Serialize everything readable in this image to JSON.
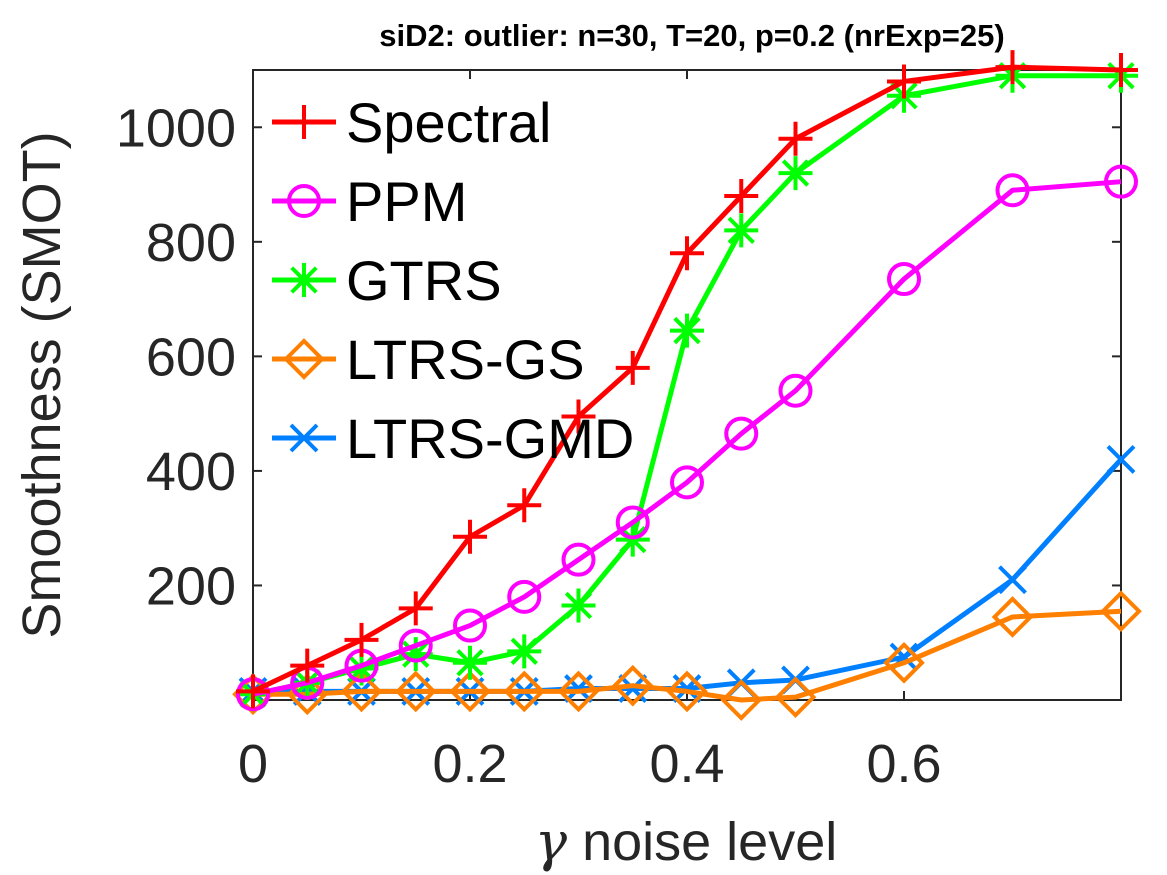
{
  "chart_data": {
    "type": "line",
    "title": "siD2: outlier: n=30, T=20, p=0.2 (nrExp=25)",
    "xlabel_symbol": "γ",
    "xlabel": "noise level",
    "ylabel": "Smoothness (SMOT)",
    "xlim": [
      0,
      0.8
    ],
    "ylim": [
      0,
      1100
    ],
    "xticks": [
      0,
      0.2,
      0.4,
      0.6
    ],
    "xtick_labels": [
      "0",
      "0.2",
      "0.4",
      "0.6"
    ],
    "yticks": [
      200,
      400,
      600,
      800,
      1000
    ],
    "ytick_labels": [
      "200",
      "400",
      "600",
      "800",
      "1000"
    ],
    "grid": false,
    "legend_position": "top-left",
    "x": [
      0,
      0.05,
      0.1,
      0.15,
      0.2,
      0.25,
      0.3,
      0.35,
      0.4,
      0.45,
      0.5,
      0.6,
      0.7,
      0.8
    ],
    "series": [
      {
        "name": "Spectral",
        "color": "#ff0000",
        "marker": "plus",
        "values": [
          15,
          60,
          105,
          160,
          285,
          340,
          495,
          580,
          780,
          880,
          980,
          1080,
          1105,
          1100
        ]
      },
      {
        "name": "PPM",
        "color": "#ff00ff",
        "marker": "circle",
        "values": [
          10,
          30,
          60,
          95,
          130,
          180,
          245,
          310,
          380,
          465,
          540,
          735,
          890,
          905
        ]
      },
      {
        "name": "GTRS",
        "color": "#00ff00",
        "marker": "asterisk",
        "values": [
          10,
          30,
          55,
          80,
          65,
          85,
          165,
          280,
          645,
          820,
          920,
          1055,
          1090,
          1090
        ]
      },
      {
        "name": "LTRS-GS",
        "color": "#ff8000",
        "marker": "diamond",
        "values": [
          10,
          10,
          15,
          15,
          15,
          15,
          15,
          25,
          15,
          0,
          5,
          65,
          145,
          155
        ]
      },
      {
        "name": "LTRS-GMD",
        "color": "#0080ff",
        "marker": "cross",
        "values": [
          15,
          15,
          15,
          15,
          15,
          15,
          20,
          20,
          20,
          30,
          35,
          75,
          210,
          420
        ]
      }
    ]
  }
}
